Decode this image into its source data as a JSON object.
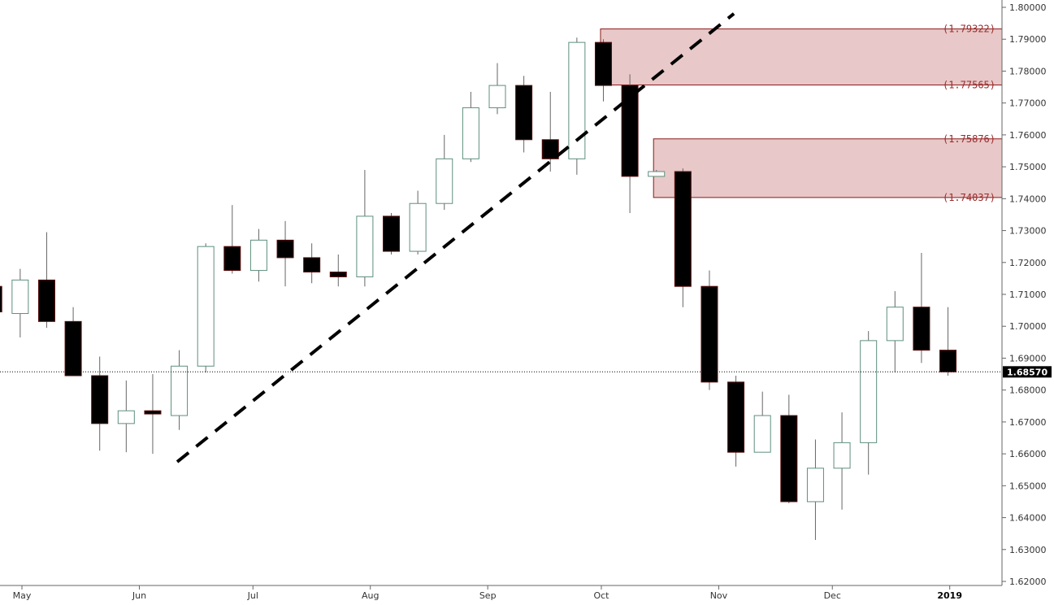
{
  "chart_data": {
    "type": "candlestick",
    "y_range": [
      1.62,
      1.8
    ],
    "y_ticks": [
      "1.62000",
      "1.63000",
      "1.64000",
      "1.65000",
      "1.66000",
      "1.67000",
      "1.68000",
      "1.69000",
      "1.70000",
      "1.71000",
      "1.72000",
      "1.73000",
      "1.74000",
      "1.75000",
      "1.76000",
      "1.77000",
      "1.78000",
      "1.79000",
      "1.80000"
    ],
    "x_ticks": [
      {
        "label": "May",
        "date": "2018-05-01"
      },
      {
        "label": "Jun",
        "date": "2018-06-01"
      },
      {
        "label": "Jul",
        "date": "2018-07-01"
      },
      {
        "label": "Aug",
        "date": "2018-08-01"
      },
      {
        "label": "Sep",
        "date": "2018-09-01"
      },
      {
        "label": "Oct",
        "date": "2018-10-01"
      },
      {
        "label": "Nov",
        "date": "2018-11-01"
      },
      {
        "label": "Dec",
        "date": "2018-12-01"
      },
      {
        "label": "2019",
        "date": "2019-01-01",
        "bold": true
      }
    ],
    "candles": [
      {
        "date": "2018-04-23",
        "open": 1.7125,
        "high": 1.7145,
        "low": 1.7025,
        "close": 1.7045
      },
      {
        "date": "2018-04-30",
        "open": 1.704,
        "high": 1.718,
        "low": 1.6965,
        "close": 1.7145
      },
      {
        "date": "2018-05-07",
        "open": 1.7145,
        "high": 1.7295,
        "low": 1.6995,
        "close": 1.7015
      },
      {
        "date": "2018-05-14",
        "open": 1.7015,
        "high": 1.706,
        "low": 1.6845,
        "close": 1.6845
      },
      {
        "date": "2018-05-21",
        "open": 1.6845,
        "high": 1.6905,
        "low": 1.661,
        "close": 1.6695
      },
      {
        "date": "2018-05-28",
        "open": 1.6695,
        "high": 1.683,
        "low": 1.6605,
        "close": 1.6735
      },
      {
        "date": "2018-06-04",
        "open": 1.6735,
        "high": 1.685,
        "low": 1.66,
        "close": 1.6725
      },
      {
        "date": "2018-06-11",
        "open": 1.672,
        "high": 1.6925,
        "low": 1.6675,
        "close": 1.6875
      },
      {
        "date": "2018-06-18",
        "open": 1.6875,
        "high": 1.726,
        "low": 1.6855,
        "close": 1.725
      },
      {
        "date": "2018-06-25",
        "open": 1.725,
        "high": 1.738,
        "low": 1.7165,
        "close": 1.7175
      },
      {
        "date": "2018-07-02",
        "open": 1.7175,
        "high": 1.7305,
        "low": 1.714,
        "close": 1.727
      },
      {
        "date": "2018-07-09",
        "open": 1.727,
        "high": 1.733,
        "low": 1.7125,
        "close": 1.7215
      },
      {
        "date": "2018-07-16",
        "open": 1.7215,
        "high": 1.726,
        "low": 1.7135,
        "close": 1.717
      },
      {
        "date": "2018-07-23",
        "open": 1.717,
        "high": 1.7225,
        "low": 1.7125,
        "close": 1.7155
      },
      {
        "date": "2018-07-30",
        "open": 1.7155,
        "high": 1.749,
        "low": 1.7125,
        "close": 1.7345
      },
      {
        "date": "2018-08-06",
        "open": 1.7345,
        "high": 1.7355,
        "low": 1.7225,
        "close": 1.7235
      },
      {
        "date": "2018-08-13",
        "open": 1.7235,
        "high": 1.7425,
        "low": 1.7225,
        "close": 1.7385
      },
      {
        "date": "2018-08-20",
        "open": 1.7385,
        "high": 1.76,
        "low": 1.7365,
        "close": 1.7525
      },
      {
        "date": "2018-08-27",
        "open": 1.7525,
        "high": 1.7735,
        "low": 1.7515,
        "close": 1.7685
      },
      {
        "date": "2018-09-03",
        "open": 1.7685,
        "high": 1.7825,
        "low": 1.7665,
        "close": 1.7755
      },
      {
        "date": "2018-09-10",
        "open": 1.7755,
        "high": 1.7785,
        "low": 1.7545,
        "close": 1.7585
      },
      {
        "date": "2018-09-17",
        "open": 1.7585,
        "high": 1.7735,
        "low": 1.7485,
        "close": 1.7525
      },
      {
        "date": "2018-09-24",
        "open": 1.7525,
        "high": 1.7905,
        "low": 1.7475,
        "close": 1.789
      },
      {
        "date": "2018-10-01",
        "open": 1.789,
        "high": 1.79,
        "low": 1.7705,
        "close": 1.7755
      },
      {
        "date": "2018-10-08",
        "open": 1.7755,
        "high": 1.779,
        "low": 1.7355,
        "close": 1.747
      },
      {
        "date": "2018-10-15",
        "open": 1.747,
        "high": 1.749,
        "low": 1.747,
        "close": 1.7485
      },
      {
        "date": "2018-10-22",
        "open": 1.7485,
        "high": 1.7495,
        "low": 1.706,
        "close": 1.7125
      },
      {
        "date": "2018-10-29",
        "open": 1.7125,
        "high": 1.7175,
        "low": 1.68,
        "close": 1.6825
      },
      {
        "date": "2018-11-05",
        "open": 1.6825,
        "high": 1.6845,
        "low": 1.656,
        "close": 1.6605
      },
      {
        "date": "2018-11-12",
        "open": 1.6605,
        "high": 1.6795,
        "low": 1.6605,
        "close": 1.672
      },
      {
        "date": "2018-11-19",
        "open": 1.672,
        "high": 1.6785,
        "low": 1.6445,
        "close": 1.645
      },
      {
        "date": "2018-11-26",
        "open": 1.645,
        "high": 1.6645,
        "low": 1.633,
        "close": 1.6555
      },
      {
        "date": "2018-12-03",
        "open": 1.6555,
        "high": 1.673,
        "low": 1.6425,
        "close": 1.6635
      },
      {
        "date": "2018-12-10",
        "open": 1.6635,
        "high": 1.6985,
        "low": 1.6535,
        "close": 1.6955
      },
      {
        "date": "2018-12-17",
        "open": 1.6955,
        "high": 1.711,
        "low": 1.6855,
        "close": 1.706
      },
      {
        "date": "2018-12-24",
        "open": 1.706,
        "high": 1.723,
        "low": 1.6885,
        "close": 1.6925
      },
      {
        "date": "2018-12-31",
        "open": 1.6925,
        "high": 1.706,
        "low": 1.6845,
        "close": 1.6857
      }
    ],
    "zones": [
      {
        "start_date": "2018-10-01",
        "top": 1.79322,
        "bottom": 1.77565,
        "top_label": "(1.79322)",
        "bottom_label": "(1.77565)"
      },
      {
        "start_date": "2018-10-15",
        "top": 1.75876,
        "bottom": 1.74037,
        "top_label": "(1.75876)",
        "bottom_label": "(1.74037)"
      }
    ],
    "trendline": {
      "start": {
        "date": "2018-06-11",
        "value": 1.6575
      },
      "end": {
        "date": "2018-11-05",
        "value": 1.798
      },
      "style": "dashed"
    },
    "last_price": {
      "value": 1.6857,
      "label": "1.68570"
    },
    "colors": {
      "bull_fill": "#ffffff",
      "bull_border": "#5e8f7d",
      "bear_fill": "#000000",
      "bear_border": "#5a0a0a",
      "wick": "#666666",
      "zone_fill": "#e8c8c8",
      "zone_border": "#8b1a1a",
      "zone_label": "#9b2b2b",
      "trendline": "#000000",
      "last_price_bg": "#000000",
      "axis": "#666666"
    }
  }
}
